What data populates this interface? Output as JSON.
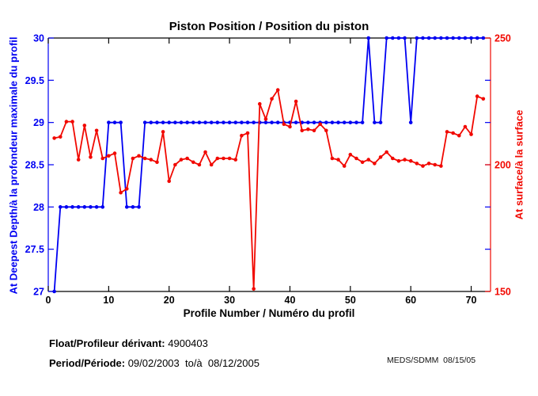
{
  "chart_data": {
    "type": "line",
    "title": "Piston Position / Position du piston",
    "xlabel": "Profile Number / Numéro du profil",
    "ylabel_left": "At Deepest Depth/à la profondeur maximale du profil",
    "ylabel_right": "At surface/à la surface",
    "xlim": [
      0,
      73.2
    ],
    "ylim_left": [
      27,
      30
    ],
    "ylim_right": [
      150,
      250
    ],
    "xticks": [
      0,
      10,
      20,
      30,
      40,
      50,
      60,
      70
    ],
    "yticks_left": [
      27,
      27.5,
      28,
      28.5,
      29,
      29.5,
      30
    ],
    "yticks_right": [
      150,
      200,
      250
    ],
    "grid": false,
    "legend_position": "none",
    "colors": {
      "left": "#0000f2",
      "right": "#f10800",
      "frame": "#000000"
    },
    "x": [
      1,
      2,
      3,
      4,
      5,
      6,
      7,
      8,
      9,
      10,
      11,
      12,
      13,
      14,
      15,
      16,
      17,
      18,
      19,
      20,
      21,
      22,
      23,
      24,
      25,
      26,
      27,
      28,
      29,
      30,
      31,
      32,
      33,
      34,
      35,
      36,
      37,
      38,
      39,
      40,
      41,
      42,
      43,
      44,
      45,
      46,
      47,
      48,
      49,
      50,
      51,
      52,
      53,
      54,
      55,
      56,
      57,
      58,
      59,
      60,
      61,
      62,
      63,
      64,
      65,
      66,
      67,
      68,
      69,
      70,
      71,
      72
    ],
    "series": [
      {
        "name": "at-deepest-depth",
        "axis": "left",
        "color_key": "left",
        "values": [
          27,
          28,
          28,
          28,
          28,
          28,
          28,
          28,
          28,
          29,
          29,
          29,
          28,
          28,
          28,
          29,
          29,
          29,
          29,
          29,
          29,
          29,
          29,
          29,
          29,
          29,
          29,
          29,
          29,
          29,
          29,
          29,
          29,
          29,
          29,
          29,
          29,
          29,
          29,
          29,
          29,
          29,
          29,
          29,
          29,
          29,
          29,
          29,
          29,
          29,
          29,
          29,
          30,
          29,
          29,
          30,
          30,
          30,
          30,
          29,
          30,
          30,
          30,
          30,
          30,
          30,
          30,
          30,
          30,
          30,
          30,
          30
        ]
      },
      {
        "name": "at-surface",
        "axis": "right",
        "color_key": "right",
        "values": [
          210.5,
          211,
          217,
          217,
          202,
          215.5,
          203,
          213.5,
          202.5,
          203.5,
          204.5,
          189,
          190.5,
          202.5,
          203.5,
          202.5,
          202,
          201,
          213,
          193.5,
          200,
          202,
          202.5,
          201,
          200,
          205,
          200,
          202.5,
          202.5,
          202.5,
          202,
          211.5,
          212.5,
          151,
          224,
          218,
          226,
          229.5,
          216,
          215,
          225,
          213.5,
          214,
          213.5,
          216,
          213.5,
          202.5,
          202,
          199.5,
          204,
          202.5,
          201,
          202,
          200.5,
          203,
          205,
          202.5,
          201.5,
          202,
          201.5,
          200.5,
          199.5,
          200.5,
          200,
          199.5,
          213,
          212.5,
          211.5,
          215,
          212,
          227,
          226
        ]
      }
    ]
  },
  "footer": {
    "float_label": "Float/Profileur dérivant:",
    "float_value": " 4900403",
    "period_label": "Period/Période:",
    "period_value": " 09/02/2003  to/à  08/12/2005",
    "agency_stamp": "MEDS/SDMM  08/15/05"
  }
}
